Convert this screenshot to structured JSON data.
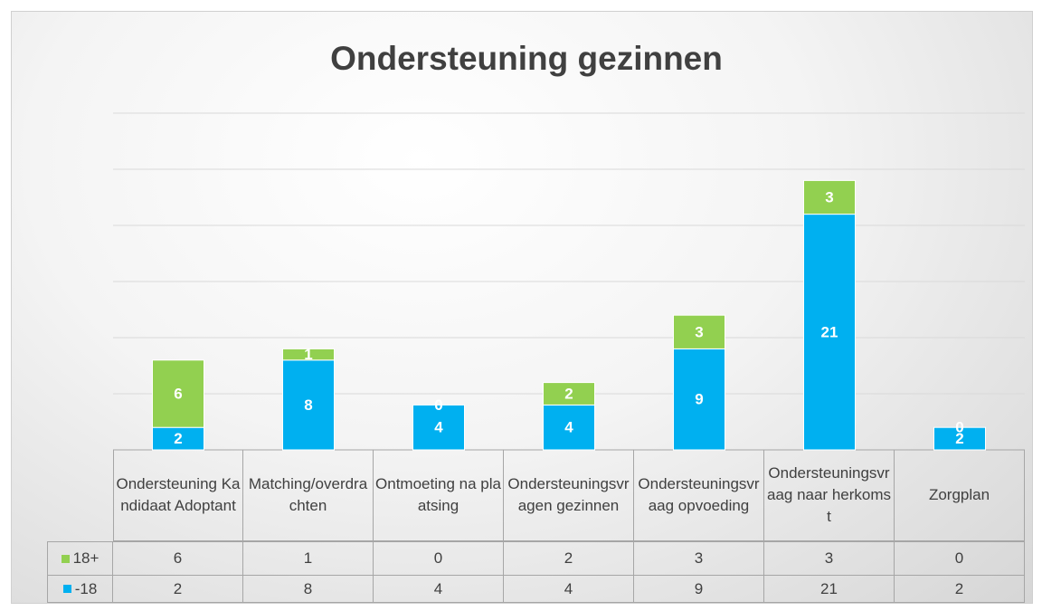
{
  "chart_data": {
    "type": "stacked_bar",
    "title": "Ondersteuning gezinnen",
    "categories": [
      "Ondersteuning Kandidaat Adoptant",
      "Matching/overdrachten",
      "Ontmoeting na plaatsing",
      "Ondersteuningsvragen gezinnen",
      "Ondersteuningsvraag opvoeding",
      "Ondersteuningsvraag naar herkomst",
      "Zorgplan"
    ],
    "series": [
      {
        "name": "-18",
        "color": "#00b0f0",
        "values": [
          2,
          8,
          4,
          4,
          9,
          21,
          2
        ]
      },
      {
        "name": "18+",
        "color": "#92d050",
        "values": [
          6,
          1,
          0,
          2,
          3,
          3,
          0
        ]
      }
    ],
    "ylim": [
      0,
      30
    ],
    "yticks": [
      0,
      5,
      10,
      15,
      20,
      25,
      30
    ],
    "grid": true
  }
}
